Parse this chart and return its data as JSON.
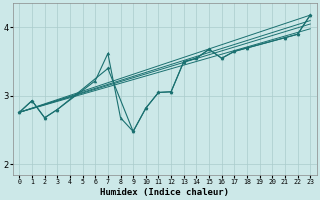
{
  "xlabel": "Humidex (Indice chaleur)",
  "background_color": "#cce8e8",
  "grid_color": "#aacccc",
  "line_color": "#1a7070",
  "xlim": [
    -0.5,
    23.5
  ],
  "ylim": [
    1.85,
    4.35
  ],
  "xticks": [
    0,
    1,
    2,
    3,
    4,
    5,
    6,
    7,
    8,
    9,
    10,
    11,
    12,
    13,
    14,
    15,
    16,
    17,
    18,
    19,
    20,
    21,
    22,
    23
  ],
  "yticks": [
    2,
    3,
    4
  ],
  "zigzag1_x": [
    0,
    1,
    2,
    3,
    6,
    7,
    8,
    9,
    10,
    11,
    12,
    13,
    14,
    15,
    16,
    17,
    18,
    21,
    22,
    23
  ],
  "zigzag1_y": [
    2.76,
    2.93,
    2.68,
    2.8,
    3.22,
    3.62,
    2.68,
    2.48,
    2.82,
    3.05,
    3.06,
    3.5,
    3.55,
    3.68,
    3.55,
    3.65,
    3.7,
    3.85,
    3.9,
    4.18
  ],
  "zigzag2_x": [
    0,
    1,
    2,
    3,
    7,
    9,
    10,
    11,
    12,
    13,
    14,
    15,
    16,
    17,
    18,
    21,
    22,
    23
  ],
  "zigzag2_y": [
    2.76,
    2.93,
    2.68,
    2.8,
    3.4,
    2.48,
    2.82,
    3.05,
    3.06,
    3.5,
    3.55,
    3.68,
    3.55,
    3.65,
    3.7,
    3.85,
    3.9,
    4.18
  ],
  "trend_lines": [
    {
      "x0": 0,
      "y0": 2.76,
      "x1": 23,
      "y1": 4.18
    },
    {
      "x0": 0,
      "y0": 2.76,
      "x1": 23,
      "y1": 4.1
    },
    {
      "x0": 0,
      "y0": 2.76,
      "x1": 23,
      "y1": 4.05
    },
    {
      "x0": 0,
      "y0": 2.76,
      "x1": 23,
      "y1": 3.98
    }
  ],
  "tri_markers_x": [
    1,
    6,
    7,
    13,
    14,
    15,
    16,
    17,
    18,
    21,
    22,
    23
  ],
  "tri_markers_y": [
    2.93,
    3.22,
    3.62,
    3.5,
    3.55,
    3.68,
    3.55,
    3.65,
    3.7,
    3.85,
    3.9,
    4.18
  ],
  "diamond_markers_x": [
    0,
    1,
    2,
    3,
    7,
    9,
    10,
    11,
    12,
    13,
    14,
    15,
    16,
    17,
    18,
    21,
    22,
    23
  ],
  "diamond_markers_y": [
    2.76,
    2.93,
    2.68,
    2.8,
    3.4,
    2.48,
    2.82,
    3.05,
    3.06,
    3.5,
    3.55,
    3.68,
    3.55,
    3.65,
    3.7,
    3.85,
    3.9,
    4.18
  ]
}
